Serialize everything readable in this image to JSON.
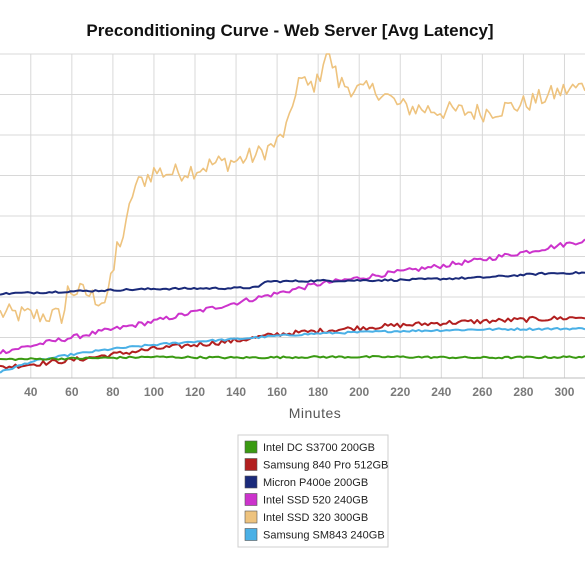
{
  "chart_data": {
    "type": "line",
    "title": "Preconditioning Curve - Web Server [Avg Latency]",
    "xlabel": "Minutes",
    "ylabel": "",
    "xlim": [
      25,
      310
    ],
    "ylim": [
      0,
      40
    ],
    "x_ticks": [
      40,
      60,
      80,
      100,
      120,
      140,
      160,
      180,
      200,
      220,
      240,
      260,
      280,
      300
    ],
    "grid": true,
    "legend_position": "bottom-center",
    "series": [
      {
        "name": "Intel DC S3700 200GB",
        "color": "#3a9a12",
        "x": [
          25,
          60,
          100,
          140,
          180,
          220,
          260,
          310
        ],
        "y": [
          2.3,
          2.4,
          2.6,
          2.5,
          2.6,
          2.6,
          2.5,
          2.6
        ],
        "noise": 0.12
      },
      {
        "name": "Samsung 840 Pro 512GB",
        "color": "#b21f1f",
        "x": [
          25,
          60,
          100,
          140,
          160,
          180,
          200,
          220,
          240,
          260,
          280,
          300,
          310
        ],
        "y": [
          1.3,
          2.2,
          3.6,
          4.6,
          5.4,
          5.8,
          6.2,
          6.5,
          6.8,
          7.0,
          7.2,
          7.4,
          7.5
        ],
        "noise": 0.3
      },
      {
        "name": "Micron P400e 200GB",
        "color": "#1a2a7a",
        "x": [
          25,
          60,
          100,
          140,
          152,
          153,
          180,
          220,
          260,
          290,
          310
        ],
        "y": [
          10.4,
          10.7,
          11.0,
          11.1,
          11.2,
          11.9,
          12.0,
          12.1,
          12.4,
          12.9,
          13.0
        ],
        "noise": 0.12
      },
      {
        "name": "Intel SSD 520 240GB",
        "color": "#cc33cc",
        "x": [
          25,
          60,
          100,
          140,
          180,
          220,
          260,
          290,
          310
        ],
        "y": [
          3.2,
          5.0,
          7.0,
          9.3,
          11.6,
          13.1,
          14.6,
          16.0,
          17.0
        ],
        "noise": 0.3
      },
      {
        "name": "Intel SSD 320 300GB",
        "color": "#eec37e",
        "x": [
          25,
          45,
          56,
          58,
          66,
          72,
          76,
          80,
          82,
          86,
          90,
          100,
          110,
          120,
          130,
          140,
          150,
          160,
          166,
          170,
          175,
          180,
          184,
          190,
          200,
          210,
          220,
          240,
          260,
          280,
          300,
          310
        ],
        "y": [
          8.0,
          7.7,
          7.7,
          10.8,
          10.6,
          9.8,
          9.6,
          12.5,
          16.2,
          18.0,
          23.5,
          25.5,
          25.3,
          25.8,
          26.5,
          26.8,
          27.5,
          29.0,
          31.5,
          37.0,
          36.0,
          36.5,
          41.0,
          36.5,
          35.5,
          35.5,
          33.5,
          33.0,
          32.8,
          33.8,
          35.5,
          36.0
        ],
        "noise": 1.2
      },
      {
        "name": "Samsung SM843 240GB",
        "color": "#4ab0e6",
        "x": [
          25,
          40,
          60,
          80,
          100,
          120,
          140,
          160,
          180,
          220,
          260,
          310
        ],
        "y": [
          0.7,
          2.0,
          2.9,
          3.6,
          4.1,
          4.5,
          4.8,
          5.2,
          5.5,
          5.8,
          6.0,
          6.1
        ],
        "noise": 0.12
      }
    ]
  }
}
